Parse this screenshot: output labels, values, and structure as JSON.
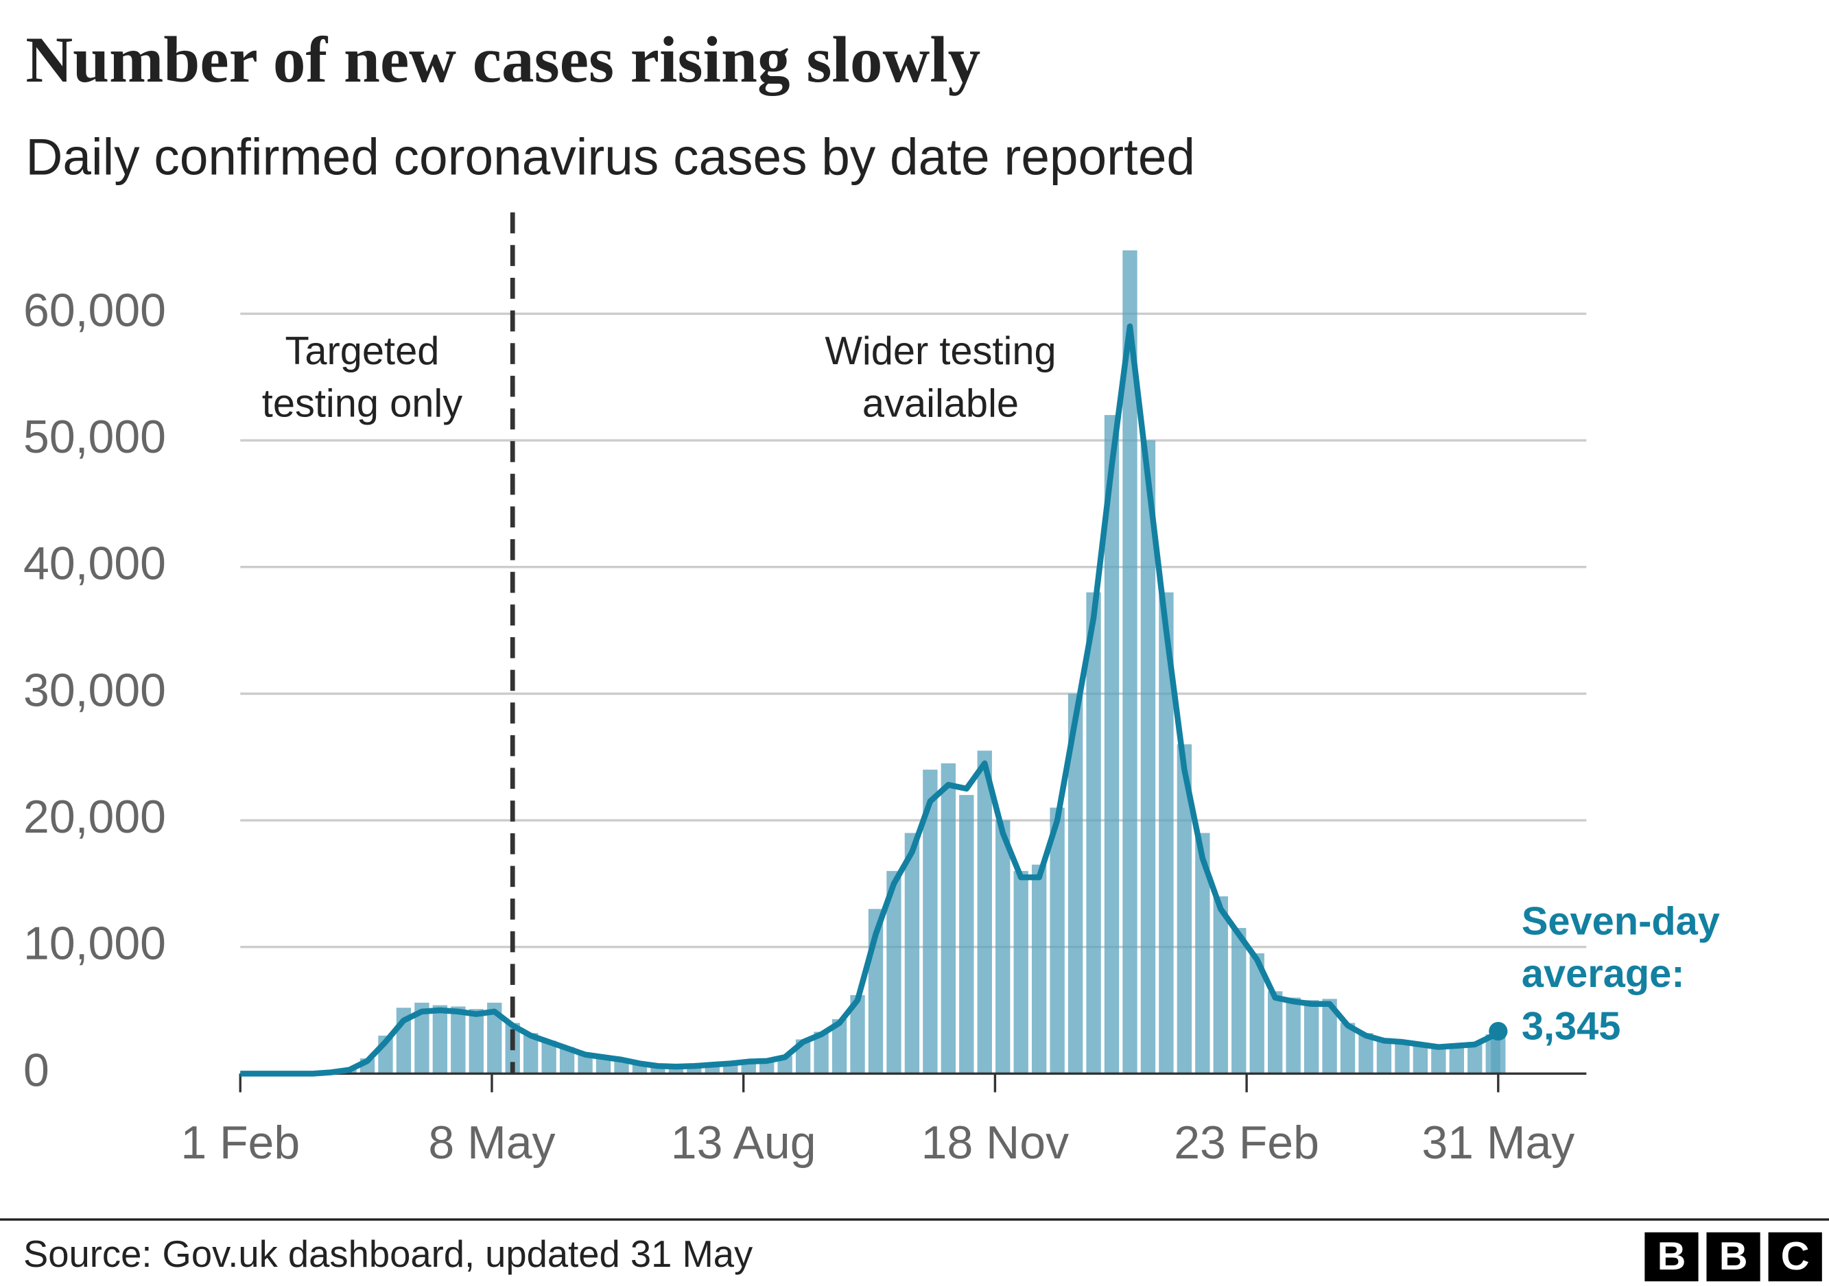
{
  "chart_data": {
    "type": "bar_line",
    "title": "Number of new cases rising slowly",
    "subtitle": "Daily confirmed coronavirus cases by date reported",
    "source": "Source: Gov.uk dashboard, updated 31 May",
    "logo": [
      "B",
      "B",
      "C"
    ],
    "annotations": [
      {
        "lines": [
          "Targeted",
          "testing only"
        ],
        "x": 47
      },
      {
        "lines": [
          "Wider testing",
          "available"
        ],
        "x": 270
      }
    ],
    "divider_x": 105,
    "avg_label": [
      "Seven-day",
      "average:"
    ],
    "x": [
      0,
      7,
      14,
      21,
      28,
      35,
      42,
      49,
      56,
      63,
      70,
      77,
      84,
      91,
      98,
      105,
      112,
      119,
      126,
      133,
      140,
      147,
      154,
      161,
      168,
      175,
      182,
      189,
      196,
      203,
      210,
      217,
      224,
      231,
      238,
      245,
      252,
      259,
      266,
      273,
      280,
      287,
      294,
      301,
      308,
      315,
      322,
      329,
      336,
      343,
      350,
      357,
      364,
      371,
      378,
      385,
      392,
      399,
      406,
      413,
      420,
      427,
      434,
      441,
      448,
      455,
      462,
      469,
      476,
      483,
      485
    ],
    "series": [
      {
        "kind": "bar",
        "color": "#5aa3bd",
        "values": [
          0,
          0,
          0,
          0,
          0,
          150,
          400,
          1200,
          3000,
          5200,
          5600,
          5400,
          5300,
          5100,
          5600,
          4000,
          3200,
          2600,
          2100,
          1600,
          1400,
          1200,
          900,
          700,
          600,
          650,
          750,
          850,
          1000,
          1100,
          1400,
          2700,
          3300,
          4300,
          6200,
          13000,
          16000,
          19000,
          24000,
          24500,
          22000,
          25500,
          20000,
          16000,
          16500,
          21000,
          30000,
          38000,
          52000,
          65000,
          50000,
          38000,
          26000,
          19000,
          14000,
          11500,
          9500,
          6500,
          6000,
          5800,
          5900,
          4000,
          3200,
          2800,
          2600,
          2400,
          2200,
          2300,
          2500,
          3100,
          3400
        ]
      },
      {
        "kind": "line",
        "color": "#1380a1",
        "values": [
          0,
          0,
          0,
          0,
          0,
          100,
          300,
          1000,
          2500,
          4200,
          4900,
          5000,
          4900,
          4700,
          4900,
          3800,
          3000,
          2500,
          2000,
          1500,
          1300,
          1100,
          800,
          600,
          550,
          600,
          700,
          800,
          950,
          1000,
          1300,
          2500,
          3100,
          4000,
          5800,
          11000,
          15000,
          17500,
          21500,
          22800,
          22500,
          24500,
          19000,
          15500,
          15500,
          20000,
          28000,
          36000,
          48000,
          59000,
          47000,
          35000,
          24000,
          17000,
          13000,
          11000,
          9000,
          6000,
          5700,
          5500,
          5500,
          3800,
          3000,
          2600,
          2500,
          2300,
          2100,
          2200,
          2300,
          3000,
          3345
        ],
        "value_labels": [
          null,
          null,
          null,
          null,
          null,
          null,
          null,
          null,
          null,
          null,
          null,
          null,
          null,
          null,
          null,
          null,
          null,
          null,
          null,
          null,
          null,
          null,
          null,
          null,
          null,
          null,
          null,
          null,
          null,
          null,
          null,
          null,
          null,
          null,
          null,
          null,
          null,
          null,
          null,
          null,
          null,
          null,
          null,
          null,
          null,
          null,
          null,
          null,
          null,
          null,
          null,
          null,
          null,
          null,
          null,
          null,
          null,
          null,
          null,
          null,
          null,
          null,
          null,
          null,
          null,
          null,
          null,
          null,
          null,
          null,
          "3,345"
        ]
      }
    ],
    "xlim": [
      0,
      519
    ],
    "xticks": [
      {
        "value": 0,
        "label": "1 Feb"
      },
      {
        "value": 97,
        "label": "8 May"
      },
      {
        "value": 194,
        "label": "13 Aug"
      },
      {
        "value": 291,
        "label": "18 Nov"
      },
      {
        "value": 388,
        "label": "23 Feb"
      },
      {
        "value": 485,
        "label": "31 May"
      }
    ],
    "ylim": [
      0,
      68000
    ],
    "yticks": [
      0,
      {
        "value": 10000,
        "label": "10,000"
      },
      {
        "value": 20000,
        "label": "20,000"
      },
      {
        "value": 30000,
        "label": "30,000"
      },
      {
        "value": 40000,
        "label": "40,000"
      },
      {
        "value": 50000,
        "label": "50,000"
      },
      {
        "value": 60000,
        "label": "60,000"
      }
    ],
    "grid": true
  }
}
